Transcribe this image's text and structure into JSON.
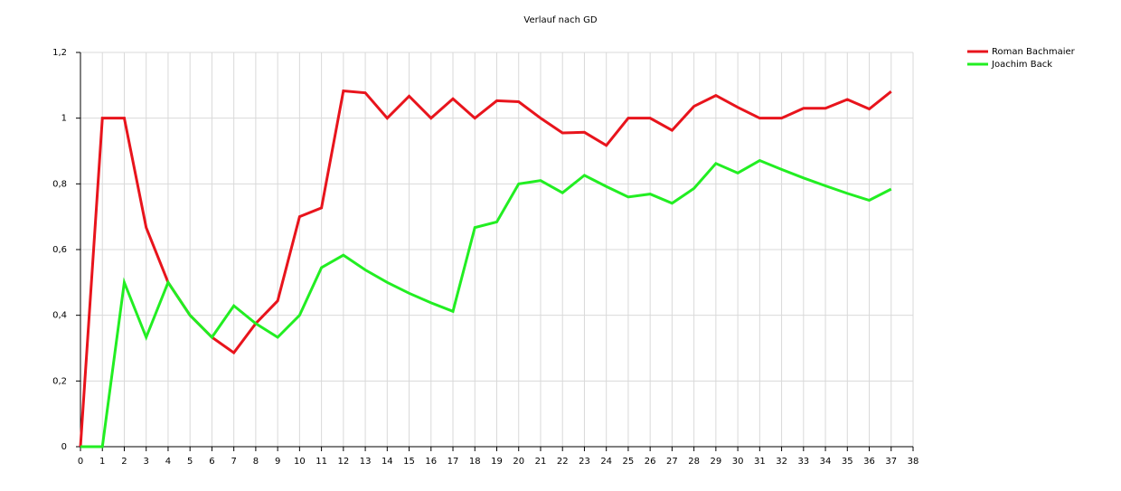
{
  "chart_data": {
    "type": "line",
    "title": "Verlauf nach GD",
    "x": [
      0,
      1,
      2,
      3,
      4,
      5,
      6,
      7,
      8,
      9,
      10,
      11,
      12,
      13,
      14,
      15,
      16,
      17,
      18,
      19,
      20,
      21,
      22,
      23,
      24,
      25,
      26,
      27,
      28,
      29,
      30,
      31,
      32,
      33,
      34,
      35,
      36,
      37
    ],
    "series": [
      {
        "name": "Roman Bachmaier",
        "color": "#e8141c",
        "values": [
          0,
          1.0,
          1.0,
          0.667,
          0.5,
          0.4,
          0.333,
          0.286,
          0.375,
          0.444,
          0.7,
          0.727,
          1.083,
          1.077,
          1.0,
          1.067,
          1.0,
          1.059,
          1.0,
          1.053,
          1.05,
          1.0,
          0.955,
          0.957,
          0.917,
          1.0,
          1.0,
          0.963,
          1.036,
          1.069,
          1.033,
          1.0,
          1.0,
          1.03,
          1.03,
          1.057,
          1.028,
          1.081
        ]
      },
      {
        "name": "Joachim Back",
        "color": "#22ee22",
        "values": [
          0,
          0,
          0.5,
          0.333,
          0.5,
          0.4,
          0.333,
          0.429,
          0.375,
          0.333,
          0.4,
          0.545,
          0.583,
          0.538,
          0.5,
          0.467,
          0.438,
          0.412,
          0.667,
          0.684,
          0.8,
          0.81,
          0.773,
          0.826,
          0.792,
          0.76,
          0.769,
          0.741,
          0.786,
          0.862,
          0.833,
          0.871,
          0.844,
          0.818,
          0.794,
          0.771,
          0.75,
          0.784
        ]
      }
    ],
    "xlim": [
      0,
      38
    ],
    "xticks": [
      0,
      1,
      2,
      3,
      4,
      5,
      6,
      7,
      8,
      9,
      10,
      11,
      12,
      13,
      14,
      15,
      16,
      17,
      18,
      19,
      20,
      21,
      22,
      23,
      24,
      25,
      26,
      27,
      28,
      29,
      30,
      31,
      32,
      33,
      34,
      35,
      36,
      37,
      38
    ],
    "ylim": [
      0,
      1.2
    ],
    "yticks": [
      0,
      {
        "value": 0.2,
        "label": "0,2"
      },
      {
        "value": 0.4,
        "label": "0,4"
      },
      {
        "value": 0.6,
        "label": "0,6"
      },
      {
        "value": 0.8,
        "label": "0,8"
      },
      1,
      {
        "value": 1.2,
        "label": "1,2"
      }
    ],
    "grid": true,
    "legend": "top-right"
  }
}
